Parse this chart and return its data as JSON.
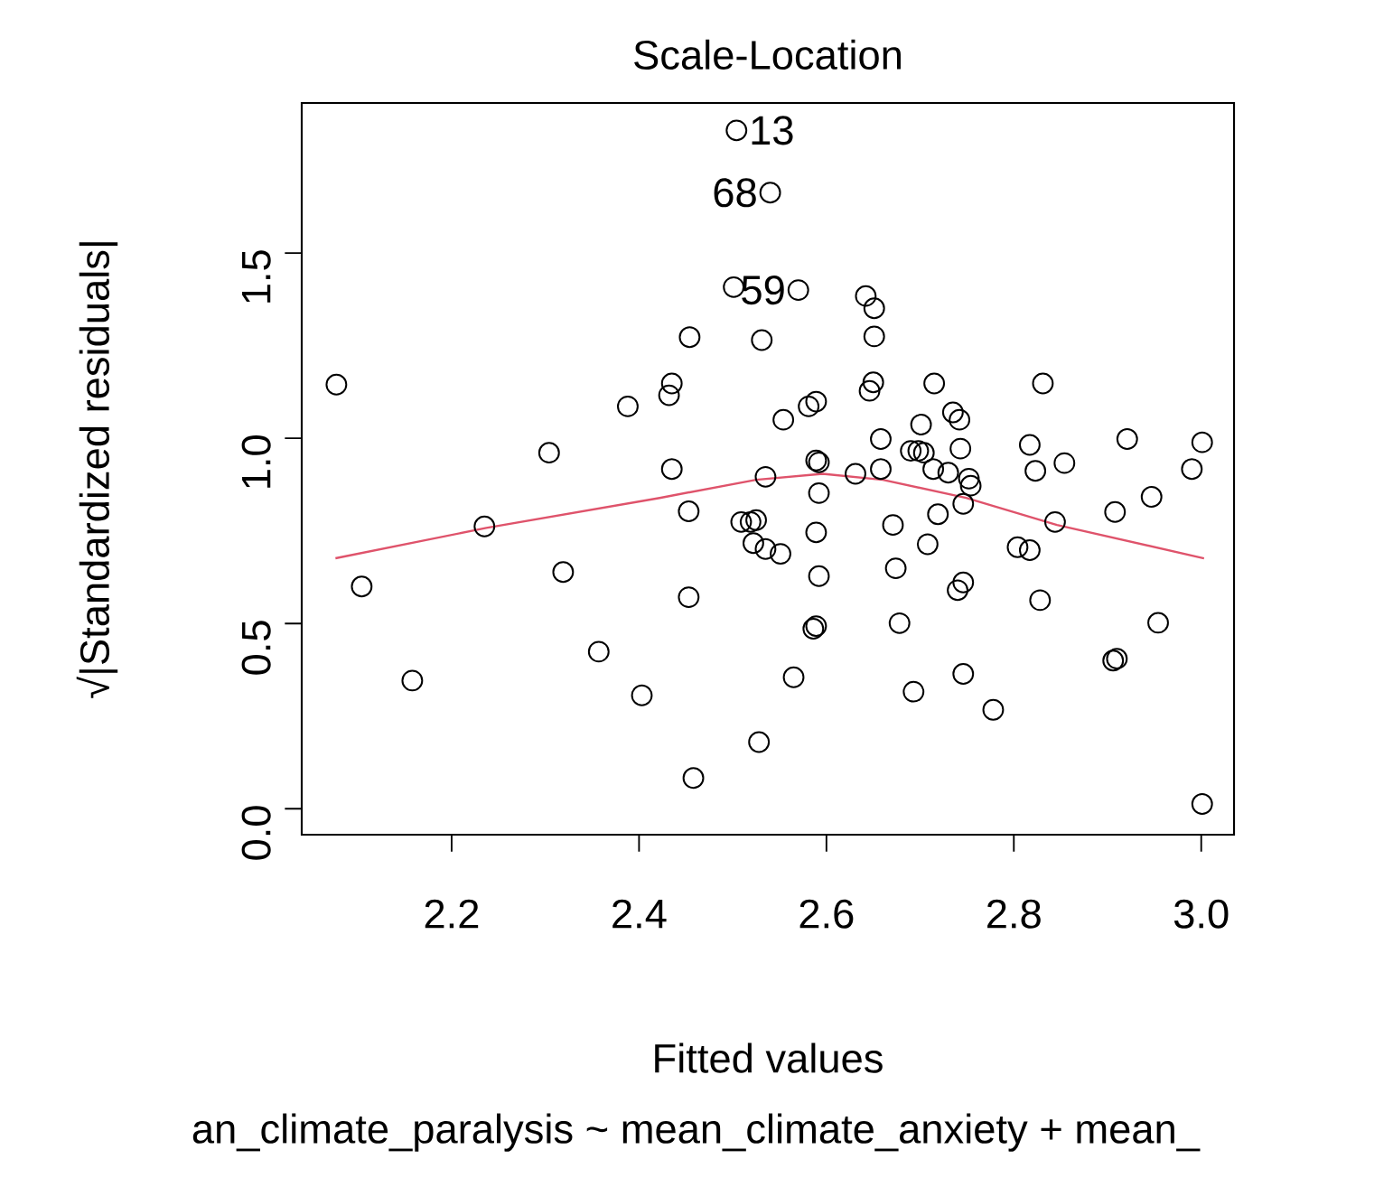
{
  "chart_data": {
    "type": "scatter",
    "title": "Scale-Location",
    "xlabel": "Fitted values",
    "ylabel": "√|Standardized residuals|",
    "xlim": [
      2.04,
      3.035
    ],
    "ylim": [
      -0.07,
      1.905
    ],
    "xticks": [
      2.2,
      2.4,
      2.6,
      2.8,
      {
        "value": 3.0,
        "label": "3.0"
      }
    ],
    "yticks": [
      {
        "value": 0,
        "label": "0.0"
      },
      0.5,
      {
        "value": 1.0,
        "label": "1.0"
      },
      1.5
    ],
    "marker": "circle",
    "series": [
      {
        "color": "#000000",
        "x": [
          2.077,
          2.504,
          2.54,
          2.501,
          2.454,
          2.435,
          2.432,
          2.388,
          2.304,
          2.435,
          2.531,
          2.57,
          2.642,
          2.651,
          2.651,
          2.715,
          2.831,
          2.65,
          2.646,
          2.554,
          2.581,
          2.589,
          2.735,
          2.742,
          2.701,
          2.658,
          2.921,
          3.001,
          2.69,
          2.698,
          2.704,
          2.743,
          2.817,
          2.589,
          2.592,
          2.854,
          2.99,
          2.658,
          2.823,
          2.631,
          2.535,
          2.714,
          2.73,
          2.752,
          2.592,
          2.754,
          2.746,
          2.719,
          2.908,
          2.947,
          2.844,
          2.525,
          2.519,
          2.509,
          2.671,
          2.589,
          2.708,
          2.804,
          2.817,
          2.522,
          2.535,
          2.551,
          2.592,
          2.674,
          2.746,
          2.74,
          2.828,
          2.954,
          2.678,
          2.586,
          2.589,
          2.906,
          2.91,
          2.565,
          2.746,
          2.693,
          2.778,
          2.528,
          3.001,
          2.235,
          2.104,
          2.319,
          2.453,
          2.453,
          2.158,
          2.357,
          2.403,
          2.458
        ],
        "values": [
          1.145,
          1.831,
          1.663,
          1.408,
          1.273,
          1.148,
          1.116,
          1.086,
          0.961,
          0.917,
          1.265,
          1.4,
          1.384,
          1.351,
          1.275,
          1.148,
          1.148,
          1.151,
          1.128,
          1.05,
          1.086,
          1.099,
          1.07,
          1.05,
          1.037,
          0.998,
          0.998,
          0.989,
          0.966,
          0.966,
          0.961,
          0.972,
          0.982,
          0.94,
          0.935,
          0.933,
          0.917,
          0.917,
          0.912,
          0.904,
          0.896,
          0.917,
          0.907,
          0.891,
          0.852,
          0.872,
          0.823,
          0.795,
          0.801,
          0.842,
          0.774,
          0.779,
          0.774,
          0.774,
          0.766,
          0.746,
          0.714,
          0.706,
          0.698,
          0.717,
          0.701,
          0.688,
          0.628,
          0.649,
          0.611,
          0.59,
          0.563,
          0.502,
          0.501,
          0.486,
          0.493,
          0.4,
          0.405,
          0.355,
          0.364,
          0.316,
          0.267,
          0.18,
          0.013,
          0.762,
          0.6,
          0.639,
          0.803,
          0.571,
          0.346,
          0.424,
          0.306,
          0.083
        ]
      },
      {
        "type": "line",
        "color": "#df536b",
        "marker": "none",
        "line_style": "solid",
        "x": [
          2.076,
          2.237,
          2.422,
          2.525,
          2.596,
          2.66,
          2.749,
          2.846,
          3.003
        ],
        "values": [
          0.676,
          0.758,
          0.839,
          0.888,
          0.904,
          0.888,
          0.839,
          0.766,
          0.676
        ]
      }
    ],
    "annotations": [
      {
        "text": "13",
        "x": 2.504,
        "y": 1.831
      },
      {
        "text": "68",
        "x": 2.54,
        "y": 1.663
      },
      {
        "text": "59",
        "x": 2.57,
        "y": 1.4
      },
      "an_climate_paralysis ~ mean_climate_anxiety + mean_"
    ]
  }
}
